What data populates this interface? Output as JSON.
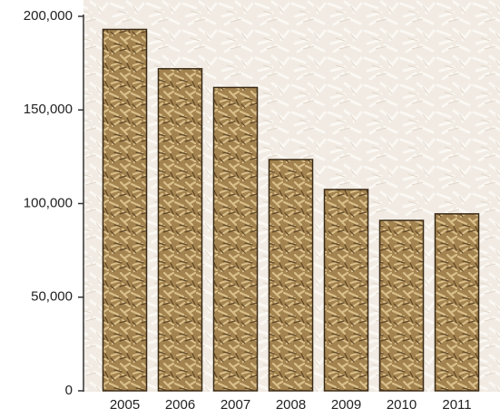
{
  "chart_data": {
    "type": "bar",
    "categories": [
      "2005",
      "2006",
      "2007",
      "2008",
      "2009",
      "2010",
      "2011"
    ],
    "values": [
      193000,
      172000,
      162000,
      123500,
      107500,
      91000,
      94500
    ],
    "color": "#a3834f",
    "ylim": [
      0,
      200000
    ],
    "yticks": [
      0,
      {
        "value": 50000,
        "label": "50,000"
      },
      {
        "value": 100000,
        "label": "100,000"
      },
      {
        "value": 150000,
        "label": "150,000"
      },
      {
        "value": 200000,
        "label": "200,000"
      }
    ]
  }
}
